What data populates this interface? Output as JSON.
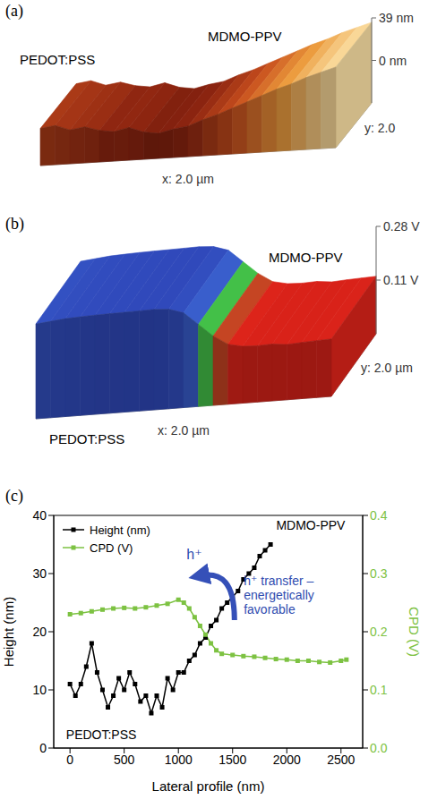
{
  "chart_data": [
    {
      "type": "surface",
      "title": "(a)",
      "xlabel": "x: 2.0 µm",
      "ylabel": "y: 2.0",
      "xlim": [
        0,
        2.0
      ],
      "zlim": [
        -39,
        39
      ],
      "zticks": [
        {
          "value": 39,
          "label": "39 nm"
        },
        {
          "value": 0,
          "label": "0 nm"
        }
      ],
      "annotations": [
        "PEDOT:PSS",
        "MDMO-PPV"
      ],
      "x": [
        0,
        0.1,
        0.2,
        0.3,
        0.4,
        0.5,
        0.6,
        0.7,
        0.8,
        0.9,
        1.0,
        1.1,
        1.2,
        1.3,
        1.4,
        1.5,
        1.6,
        1.7,
        1.8,
        1.9,
        2.0
      ],
      "values": [
        -5,
        -3,
        -8,
        -6,
        -10,
        -12,
        -9,
        -14,
        -16,
        -13,
        -11,
        -6,
        -2,
        3,
        8,
        13,
        18,
        22,
        27,
        31,
        35
      ]
    },
    {
      "type": "surface",
      "title": "(b)",
      "xlabel": "x: 2.0 µm",
      "ylabel": "y: 2.0 µm",
      "xlim": [
        0,
        2.0
      ],
      "zlim": [
        -0.06,
        0.28
      ],
      "zticks": [
        {
          "value": 0.28,
          "label": "0.28 V"
        },
        {
          "value": 0.11,
          "label": "0.11 V"
        }
      ],
      "annotations": [
        "MDMO-PPV",
        "PEDOT:PSS"
      ],
      "x": [
        0,
        0.1,
        0.2,
        0.3,
        0.4,
        0.5,
        0.6,
        0.7,
        0.8,
        0.9,
        1.0,
        1.1,
        1.2,
        1.3,
        1.4,
        1.5,
        1.6,
        1.7,
        1.8,
        1.9,
        2.0
      ],
      "values": [
        0.24,
        0.245,
        0.25,
        0.252,
        0.254,
        0.255,
        0.256,
        0.257,
        0.258,
        0.255,
        0.24,
        0.2,
        0.16,
        0.13,
        0.12,
        0.118,
        0.12,
        0.115,
        0.118,
        0.12,
        0.122
      ]
    },
    {
      "type": "line",
      "title": "(c)",
      "xlabel": "Lateral profile (nm)",
      "ylabel": "Height (nm)",
      "y2label": "CPD (V)",
      "xlim": [
        -150,
        2700
      ],
      "xticks": [
        0,
        500,
        1000,
        1500,
        2000,
        2500
      ],
      "ylim": [
        0,
        40
      ],
      "yticks": [
        0,
        10,
        20,
        30,
        40
      ],
      "y2lim": [
        0,
        0.4
      ],
      "y2ticks": [
        {
          "value": 0,
          "label": "0.0"
        },
        0.1,
        0.2,
        0.3,
        0.4
      ],
      "legend": "upper left",
      "marker": "square",
      "annotations": [
        "MDMO-PPV",
        "PEDOT:PSS",
        "h⁺",
        "h⁺ transfer – energetically favorable"
      ],
      "series": [
        {
          "name": "Height (nm)",
          "color": "#000000",
          "x": [
            0,
            50,
            100,
            150,
            200,
            250,
            300,
            350,
            400,
            450,
            500,
            550,
            600,
            650,
            700,
            750,
            800,
            850,
            900,
            950,
            1000,
            1050,
            1100,
            1150,
            1200,
            1250,
            1300,
            1350,
            1400,
            1450,
            1500,
            1550,
            1600,
            1650,
            1700,
            1750,
            1800,
            1850
          ],
          "values": [
            11,
            9,
            11,
            14,
            18,
            13,
            10,
            7,
            9,
            12,
            10,
            13,
            11,
            8,
            9,
            6,
            9,
            7,
            12,
            10,
            13,
            13,
            15,
            16,
            18,
            19,
            21,
            22,
            24,
            25,
            26,
            27,
            29,
            30,
            31,
            33,
            34,
            35
          ]
        },
        {
          "name": "CPD (V)",
          "color": "#7dc242",
          "axis": "y2",
          "x": [
            0,
            100,
            200,
            300,
            400,
            500,
            600,
            700,
            800,
            900,
            1000,
            1050,
            1100,
            1150,
            1200,
            1250,
            1300,
            1350,
            1400,
            1500,
            1600,
            1700,
            1800,
            1900,
            2000,
            2100,
            2200,
            2300,
            2400,
            2500,
            2550
          ],
          "values": [
            0.23,
            0.232,
            0.235,
            0.238,
            0.24,
            0.241,
            0.24,
            0.242,
            0.245,
            0.248,
            0.255,
            0.25,
            0.24,
            0.225,
            0.21,
            0.195,
            0.18,
            0.168,
            0.162,
            0.16,
            0.158,
            0.157,
            0.155,
            0.153,
            0.152,
            0.15,
            0.15,
            0.148,
            0.147,
            0.15,
            0.152
          ]
        }
      ]
    }
  ]
}
